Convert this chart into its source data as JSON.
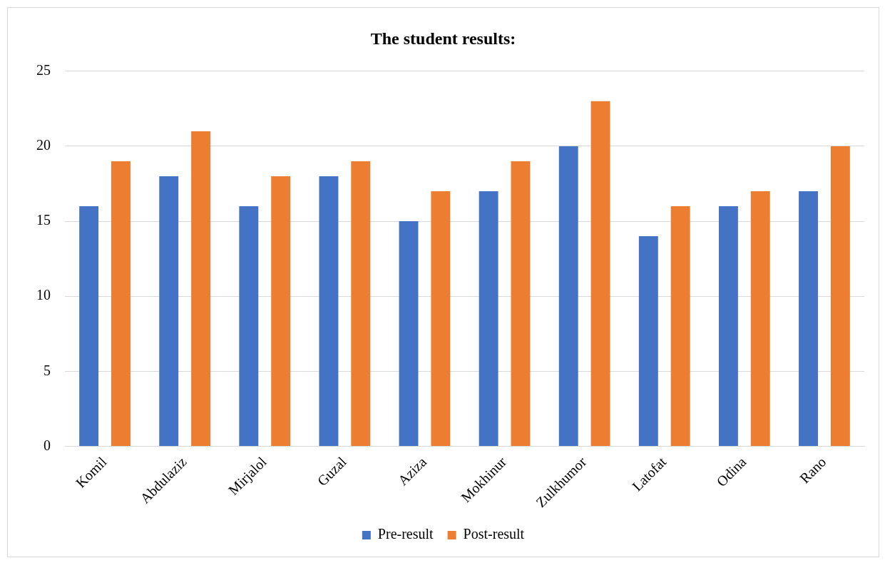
{
  "chart_data": {
    "type": "bar",
    "title": "The student results:",
    "categories": [
      "Komil",
      "Abdulaziz",
      "Mirjalol",
      "Guzal",
      "Aziza",
      "Mokhinur",
      "Zulkhumor",
      "Latofat",
      "Odina",
      "Rano"
    ],
    "series": [
      {
        "name": "Pre-result",
        "color": "#4472c4",
        "values": [
          16,
          18,
          16,
          18,
          15,
          17,
          20,
          14,
          16,
          17
        ]
      },
      {
        "name": "Post-result",
        "color": "#ed7d31",
        "values": [
          19,
          21,
          18,
          19,
          17,
          19,
          23,
          16,
          17,
          20
        ]
      }
    ],
    "ylim": [
      0,
      25
    ],
    "yticks": [
      0,
      5,
      10,
      15,
      20,
      25
    ],
    "grid": "y",
    "legend": "bottom"
  }
}
